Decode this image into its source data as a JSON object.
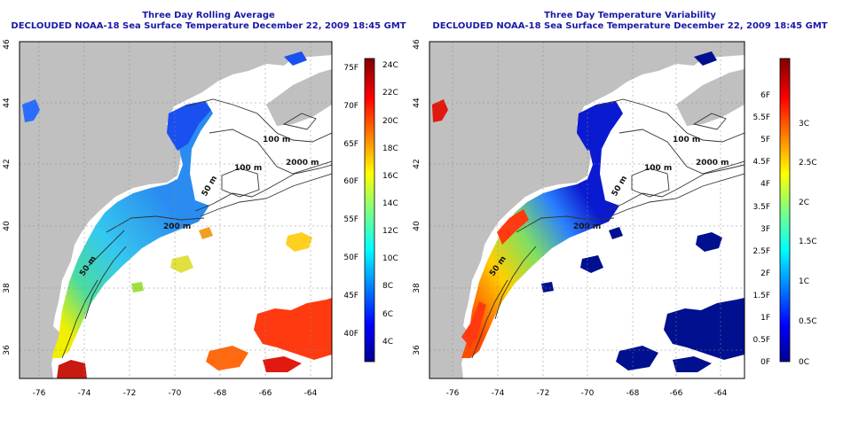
{
  "left_panel": {
    "title": "Three Day Rolling Average",
    "subtitle": "DECLOUDED NOAA-18 Sea Surface Temperature December 22, 2009 18:45 GMT",
    "lon_ticks": [
      "-76",
      "-74",
      "-72",
      "-70",
      "-68",
      "-66",
      "-64"
    ],
    "lat_ticks": [
      "36",
      "38",
      "40",
      "42",
      "44",
      "46"
    ],
    "fahrenheit_ticks": [
      "75F",
      "70F",
      "65F",
      "60F",
      "55F",
      "50F",
      "45F",
      "40F"
    ],
    "celsius_ticks": [
      "24C",
      "22C",
      "20C",
      "18C",
      "16C",
      "14C",
      "12C",
      "10C",
      "8C",
      "6C",
      "4C"
    ],
    "contour_labels": [
      "100 m",
      "100 m",
      "2000 m",
      "200 m",
      "50 m",
      "50 m"
    ]
  },
  "right_panel": {
    "title": "Three Day Temperature Variability",
    "subtitle": "DECLOUDED NOAA-18 Sea Surface Temperature December 22, 2009 18:45 GMT",
    "lon_ticks": [
      "-76",
      "-74",
      "-72",
      "-70",
      "-68",
      "-66",
      "-64"
    ],
    "lat_ticks": [
      "36",
      "38",
      "40",
      "42",
      "44",
      "46"
    ],
    "fahrenheit_ticks": [
      "6F",
      "5.5F",
      "5F",
      "4.5F",
      "4F",
      "3.5F",
      "3F",
      "2.5F",
      "2F",
      "1.5F",
      "1F",
      "0.5F",
      "0F"
    ],
    "celsius_ticks": [
      "3C",
      "2.5C",
      "2C",
      "1.5C",
      "1C",
      "0.5C",
      "0C"
    ],
    "contour_labels": [
      "100 m",
      "100 m",
      "2000 m",
      "200 m",
      "50 m",
      "50 m"
    ]
  },
  "colors": {
    "title": "#1a1aa6",
    "land": "#c0c0c0",
    "ocean": "#ffffff"
  }
}
